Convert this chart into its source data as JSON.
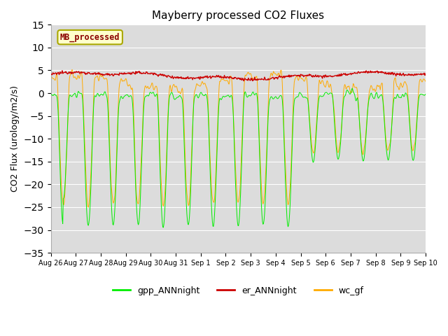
{
  "title": "Mayberry processed CO2 Fluxes",
  "ylabel": "CO2 Flux (urology/m2/s)",
  "ylim": [
    -35,
    15
  ],
  "yticks": [
    -35,
    -30,
    -25,
    -20,
    -15,
    -10,
    -5,
    0,
    5,
    10,
    15
  ],
  "plot_bg_color": "#dcdcdc",
  "fig_bg_color": "#ffffff",
  "legend_label": "MB_processed",
  "legend_text_color": "#8b0000",
  "legend_box_facecolor": "#ffffcc",
  "legend_box_edgecolor": "#aaa800",
  "line_green": "#00ee00",
  "line_red": "#cc0000",
  "line_orange": "#ffaa00",
  "n_days": 15,
  "points_per_day": 48,
  "tick_labels": [
    "Aug 26",
    "Aug 27",
    "Aug 28",
    "Aug 29",
    "Aug 30",
    "Aug 31",
    "Sep 1",
    "Sep 2",
    "Sep 3",
    "Sep 4",
    "Sep 5",
    "Sep 6",
    "Sep 7",
    "Sep 8",
    "Sep 9",
    "Sep 10"
  ]
}
